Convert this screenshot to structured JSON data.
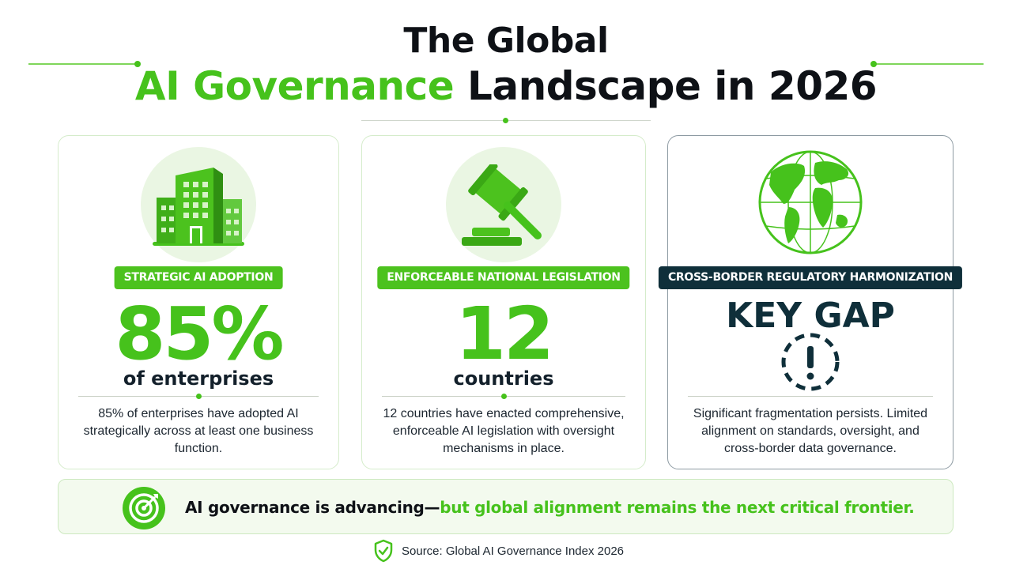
{
  "title": {
    "line1": "The Global",
    "line2_accent": "AI Governance",
    "line2_rest": " Landscape in 2026"
  },
  "colors": {
    "accent_green": "#46c21c",
    "dark_navy": "#0f2f3a",
    "light_green_bg": "#eaf6e3"
  },
  "cards": [
    {
      "icon": "office-building-icon",
      "badge": "STRATEGIC AI ADOPTION",
      "value": "85%",
      "unit": "of enterprises",
      "description": "85% of enterprises have adopted AI strategically across at least one business function."
    },
    {
      "icon": "gavel-icon",
      "badge": "ENFORCEABLE NATIONAL LEGISLATION",
      "value": "12",
      "unit": "countries",
      "description": "12 countries have enacted comprehensive, enforceable AI legislation with oversight mechanisms in place."
    },
    {
      "icon": "globe-icon",
      "badge": "CROSS-BORDER REGULATORY HARMONIZATION",
      "value": "KEY GAP",
      "alert_icon": "exclamation-alert-icon",
      "description": "Significant fragmentation persists. Limited alignment on standards, oversight, and cross-border data governance."
    }
  ],
  "banner": {
    "icon": "target-arrow-icon",
    "text_dark": "AI governance is advancing—",
    "text_accent": "but global alignment remains the next critical frontier."
  },
  "source": {
    "icon": "shield-check-icon",
    "text": "Source: Global AI Governance Index 2026"
  }
}
